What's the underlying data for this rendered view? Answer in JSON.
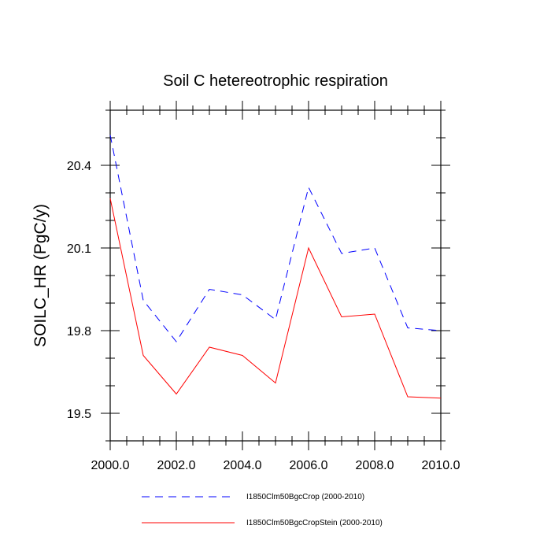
{
  "chart_data": {
    "type": "line",
    "title": "Soil C hetereotrophic respiration",
    "xlabel": "",
    "ylabel": "SOILC_HR  (PgC/y)",
    "xlim": [
      2000,
      2010
    ],
    "ylim": [
      19.4,
      20.6
    ],
    "x_ticks": [
      2000,
      2002,
      2004,
      2006,
      2008,
      2010
    ],
    "x_tick_labels": [
      "2000.0",
      "2002.0",
      "2004.0",
      "2006.0",
      "2008.0",
      "2010.0"
    ],
    "y_ticks": [
      19.5,
      19.8,
      20.1,
      20.4
    ],
    "y_tick_labels": [
      "19.5",
      "19.8",
      "20.1",
      "20.4"
    ],
    "grid": false,
    "legend_position": "bottom",
    "x": [
      2000,
      2001,
      2002,
      2003,
      2004,
      2005,
      2006,
      2007,
      2008,
      2009,
      2010
    ],
    "series": [
      {
        "name": "I1850Clm50BgcCrop (2000-2010)",
        "color": "#0000ff",
        "style": "dashed",
        "values": [
          20.51,
          19.91,
          19.76,
          19.95,
          19.93,
          19.84,
          20.32,
          20.08,
          20.1,
          19.81,
          19.8
        ]
      },
      {
        "name": "I1850Clm50BgcCropStein (2000-2010)",
        "color": "#ff0000",
        "style": "solid",
        "values": [
          20.28,
          19.71,
          19.57,
          19.74,
          19.71,
          19.61,
          20.1,
          19.85,
          19.86,
          19.56,
          19.555
        ]
      }
    ]
  }
}
